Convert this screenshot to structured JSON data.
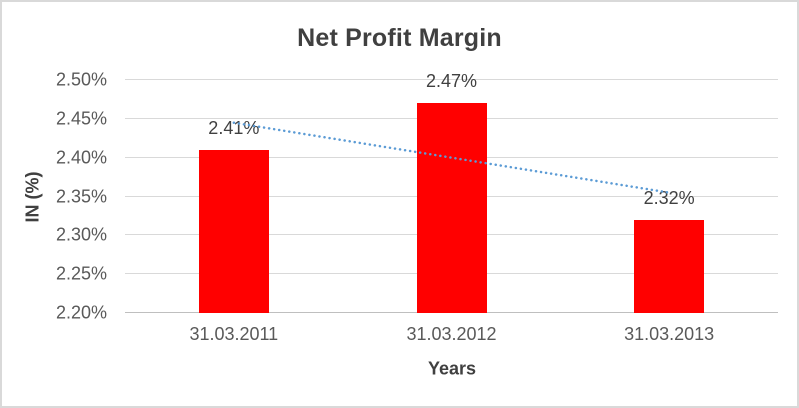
{
  "chart_data": {
    "type": "bar",
    "title": "Net Profit Margin",
    "xlabel": "Years",
    "ylabel": "IN (%)",
    "categories": [
      "31.03.2011",
      "31.03.2012",
      "31.03.2013"
    ],
    "values": [
      2.41,
      2.47,
      2.32
    ],
    "data_labels": [
      "2.41%",
      "2.47%",
      "2.32%"
    ],
    "ylim": [
      2.2,
      2.5
    ],
    "yticks": [
      2.2,
      2.25,
      2.3,
      2.35,
      2.4,
      2.45,
      2.5
    ],
    "ytick_labels": [
      "2.20%",
      "2.25%",
      "2.30%",
      "2.35%",
      "2.40%",
      "2.45%",
      "2.50%"
    ],
    "grid": true,
    "legend": false,
    "layout_hints": {
      "bar_label_position": "outside-end",
      "legend_position": "none"
    },
    "colors": {
      "bar": "#FF0000",
      "trendline": "#5B9BD5",
      "gridline": "#D9D9D9",
      "axis_line": "#BFBFBF",
      "title_text": "#404040",
      "tick_text": "#595959",
      "frame_border": "#D9D9D9",
      "background": "#FFFFFF"
    },
    "trendline": {
      "type": "linear",
      "style": "dotted",
      "series": "values"
    }
  }
}
